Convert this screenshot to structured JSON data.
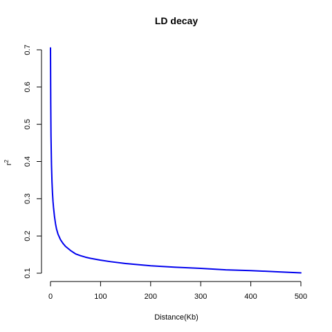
{
  "chart_data": {
    "type": "line",
    "title": "LD decay",
    "xlabel": "Distance(Kb)",
    "ylabel_base": "r",
    "ylabel_sup": "2",
    "xlim": [
      0,
      500
    ],
    "ylim": [
      0.1,
      0.7
    ],
    "x_ticks": [
      0,
      100,
      200,
      300,
      400,
      500
    ],
    "y_ticks": [
      0.1,
      0.2,
      0.3,
      0.4,
      0.5,
      0.6,
      0.7
    ],
    "grid": false,
    "legend": "none",
    "series": [
      {
        "color": "#0000ee",
        "x": [
          0,
          0.5,
          1,
          2,
          3,
          4,
          5,
          6,
          8,
          10,
          12,
          15,
          20,
          25,
          30,
          40,
          50,
          60,
          70,
          80,
          100,
          120,
          150,
          200,
          250,
          300,
          350,
          400,
          450,
          500
        ],
        "y": [
          0.705,
          0.56,
          0.47,
          0.39,
          0.345,
          0.315,
          0.293,
          0.277,
          0.252,
          0.233,
          0.219,
          0.205,
          0.19,
          0.18,
          0.172,
          0.161,
          0.152,
          0.147,
          0.143,
          0.14,
          0.135,
          0.131,
          0.126,
          0.12,
          0.116,
          0.113,
          0.109,
          0.107,
          0.104,
          0.101
        ]
      }
    ]
  }
}
